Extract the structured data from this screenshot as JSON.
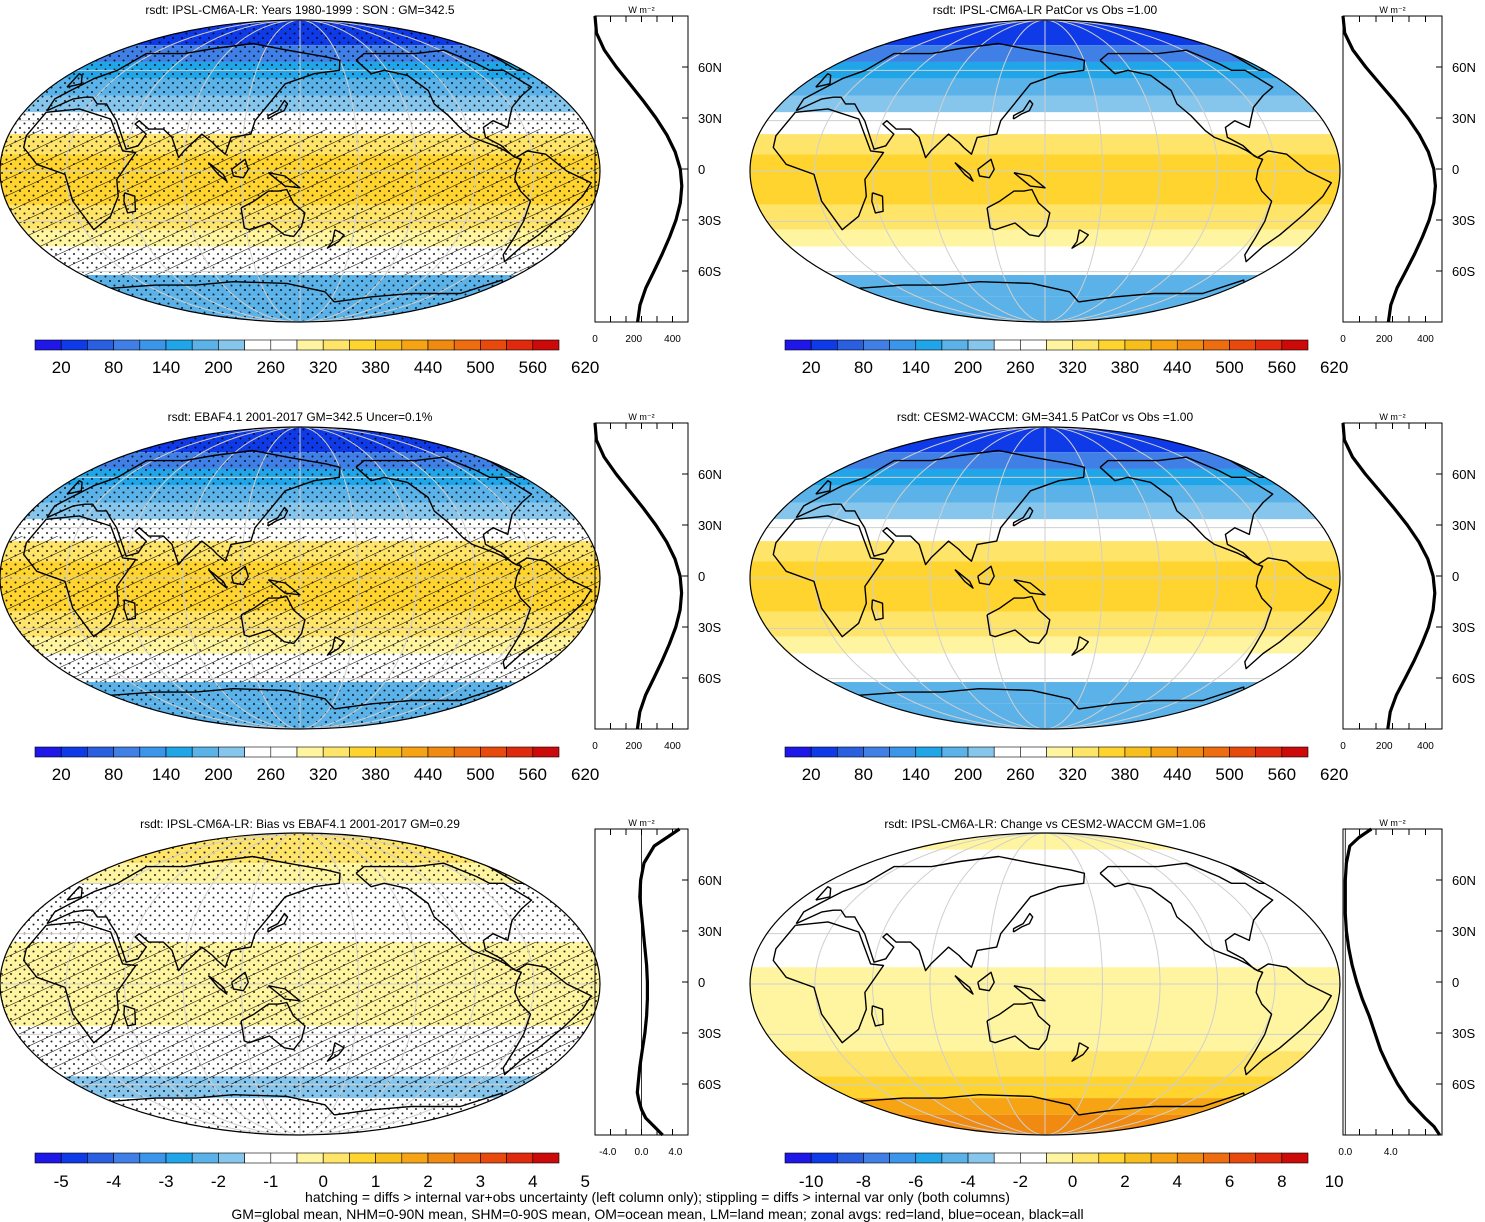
{
  "figure": {
    "footnote_line1": "hatching = diffs > internal var+obs uncertainty (left column only); stippling = diffs > internal var only (both columns)",
    "footnote_line2": "GM=global mean, NHM=0-90N mean, SHM=0-90S mean, OM=ocean mean, LM=land mean; zonal avgs: red=land, blue=ocean, black=all"
  },
  "zonal_axis": {
    "unit_label": "W m⁻²",
    "lat_labels": [
      "60N",
      "30N",
      "0",
      "30S",
      "60S"
    ],
    "lat_values": [
      60,
      30,
      0,
      -30,
      -60
    ]
  },
  "colors": {
    "clim_palette": [
      "#1f17e8",
      "#0f3ae8",
      "#2a5fe0",
      "#3f7fe6",
      "#3b95e8",
      "#1fa5e8",
      "#5ab2e8",
      "#86c6ec",
      "#ffffff",
      "#ffffff",
      "#fff5a0",
      "#ffe46a",
      "#ffd42e",
      "#f7bf1c",
      "#f6a314",
      "#f08a10",
      "#ee6d10",
      "#e84a0e",
      "#e02a0e",
      "#cc0a0a"
    ],
    "diff_palette": [
      "#1f17e8",
      "#0f3ae8",
      "#2a5fe0",
      "#3f7fe6",
      "#3b95e8",
      "#1fa5e8",
      "#5ab2e8",
      "#86c6ec",
      "#ffffff",
      "#ffffff",
      "#fff5a0",
      "#ffe46a",
      "#ffd42e",
      "#f7bf1c",
      "#f6a314",
      "#f08a10",
      "#ee6d10",
      "#e84a0e",
      "#e02a0e",
      "#cc0a0a"
    ],
    "land_line": "#cc0000",
    "ocean_line": "#0000cc",
    "all_line": "#000000"
  },
  "chart_data": [
    {
      "type": "heatmap",
      "title": "rsdt: IPSL-CM6A-LR: Years 1980-1999 : SON : GM=342.5",
      "colorbar_labels": [
        "20",
        "80",
        "140",
        "200",
        "260",
        "320",
        "380",
        "440",
        "500",
        "560",
        "620"
      ],
      "hatching": true,
      "stippling": true,
      "zonal_mean": {
        "type": "line",
        "xlabel": "W m-2",
        "xticks": [
          "0",
          "200",
          "400"
        ],
        "xlim": [
          0,
          480
        ],
        "lat": [
          -90,
          -80,
          -70,
          -60,
          -50,
          -40,
          -30,
          -20,
          -10,
          0,
          10,
          20,
          30,
          40,
          50,
          60,
          70,
          80,
          90
        ],
        "values": [
          220,
          232,
          262,
          305,
          347,
          385,
          418,
          440,
          448,
          440,
          414,
          371,
          315,
          250,
          180,
          110,
          48,
          8,
          0
        ]
      }
    },
    {
      "type": "heatmap",
      "title": "rsdt: IPSL-CM6A-LR PatCor vs Obs =1.00",
      "colorbar_labels": [
        "20",
        "80",
        "140",
        "200",
        "260",
        "320",
        "380",
        "440",
        "500",
        "560",
        "620"
      ],
      "hatching": false,
      "stippling": false,
      "zonal_mean": {
        "type": "line",
        "xlabel": "W m-2",
        "xticks": [
          "0",
          "200",
          "400"
        ],
        "xlim": [
          0,
          480
        ],
        "lat": [
          -90,
          -80,
          -70,
          -60,
          -50,
          -40,
          -30,
          -20,
          -10,
          0,
          10,
          20,
          30,
          40,
          50,
          60,
          70,
          80,
          90
        ],
        "values": [
          220,
          232,
          262,
          305,
          347,
          385,
          418,
          440,
          448,
          440,
          414,
          371,
          315,
          250,
          180,
          110,
          48,
          8,
          0
        ]
      }
    },
    {
      "type": "heatmap",
      "title": "rsdt: EBAF4.1 2001-2017 GM=342.5 Uncer=0.1%",
      "colorbar_labels": [
        "20",
        "80",
        "140",
        "200",
        "260",
        "320",
        "380",
        "440",
        "500",
        "560",
        "620"
      ],
      "hatching": true,
      "stippling": true,
      "zonal_mean": {
        "type": "line",
        "xlabel": "W m-2",
        "xticks": [
          "0",
          "200",
          "400"
        ],
        "xlim": [
          0,
          480
        ],
        "lat": [
          -90,
          -80,
          -70,
          -60,
          -50,
          -40,
          -30,
          -20,
          -10,
          0,
          10,
          20,
          30,
          40,
          50,
          60,
          70,
          80,
          90
        ],
        "values": [
          219,
          231,
          261,
          304,
          346,
          384,
          417,
          439,
          447,
          439,
          413,
          370,
          314,
          249,
          179,
          109,
          47,
          7,
          0
        ]
      }
    },
    {
      "type": "heatmap",
      "title": "rsdt: CESM2-WACCM: GM=341.5 PatCor vs Obs =1.00",
      "colorbar_labels": [
        "20",
        "80",
        "140",
        "200",
        "260",
        "320",
        "380",
        "440",
        "500",
        "560",
        "620"
      ],
      "hatching": false,
      "stippling": false,
      "zonal_mean": {
        "type": "line",
        "xlabel": "W m-2",
        "xticks": [
          "0",
          "200",
          "400"
        ],
        "xlim": [
          0,
          480
        ],
        "lat": [
          -90,
          -80,
          -70,
          -60,
          -50,
          -40,
          -30,
          -20,
          -10,
          0,
          10,
          20,
          30,
          40,
          50,
          60,
          70,
          80,
          90
        ],
        "values": [
          217,
          229,
          259,
          302,
          344,
          382,
          415,
          437,
          445,
          437,
          411,
          368,
          312,
          247,
          178,
          108,
          46,
          7,
          0
        ]
      }
    },
    {
      "type": "heatmap",
      "title": "rsdt: IPSL-CM6A-LR: Bias vs EBAF4.1 2001-2017  GM=0.29",
      "colorbar_labels": [
        "-5",
        "-4",
        "-3",
        "-2",
        "-1",
        "0",
        "1",
        "2",
        "3",
        "4",
        "5"
      ],
      "hatching": true,
      "stippling": true,
      "zonal_mean": {
        "type": "line",
        "xlabel": "W m-2",
        "xticks": [
          "-4.0",
          "0.0",
          "4.0"
        ],
        "xlim": [
          -5.5,
          5.5
        ],
        "lat": [
          -90,
          -85,
          -80,
          -75,
          -70,
          -65,
          -60,
          -50,
          -40,
          -30,
          -20,
          -10,
          0,
          10,
          20,
          30,
          40,
          50,
          60,
          70,
          80,
          85,
          90
        ],
        "values": [
          2.5,
          1.5,
          0.5,
          0.0,
          -0.3,
          -0.5,
          -0.4,
          -0.2,
          0.1,
          0.4,
          0.6,
          0.7,
          0.7,
          0.6,
          0.4,
          0.2,
          0.0,
          -0.2,
          -0.1,
          0.3,
          1.5,
          3.0,
          4.5
        ]
      }
    },
    {
      "type": "heatmap",
      "title": "rsdt: IPSL-CM6A-LR: Change vs CESM2-WACCM GM=1.06",
      "colorbar_labels": [
        "-10",
        "-8",
        "-6",
        "-4",
        "-2",
        "0",
        "2",
        "4",
        "6",
        "8",
        "10"
      ],
      "hatching": false,
      "stippling": false,
      "zonal_mean": {
        "type": "line",
        "xlabel": "W m-2",
        "xticks": [
          "0.0",
          "4.0"
        ],
        "xlim": [
          -0.2,
          8.5
        ],
        "lat": [
          -90,
          -85,
          -80,
          -75,
          -70,
          -60,
          -50,
          -40,
          -30,
          -20,
          -10,
          0,
          10,
          20,
          30,
          40,
          50,
          60,
          70,
          80,
          85,
          90
        ],
        "values": [
          8.3,
          7.8,
          7.0,
          6.3,
          5.6,
          4.6,
          3.8,
          3.1,
          2.6,
          2.1,
          1.5,
          1.0,
          0.6,
          0.3,
          0.1,
          0.0,
          0.0,
          0.0,
          0.1,
          0.4,
          1.2,
          2.3
        ]
      }
    }
  ]
}
